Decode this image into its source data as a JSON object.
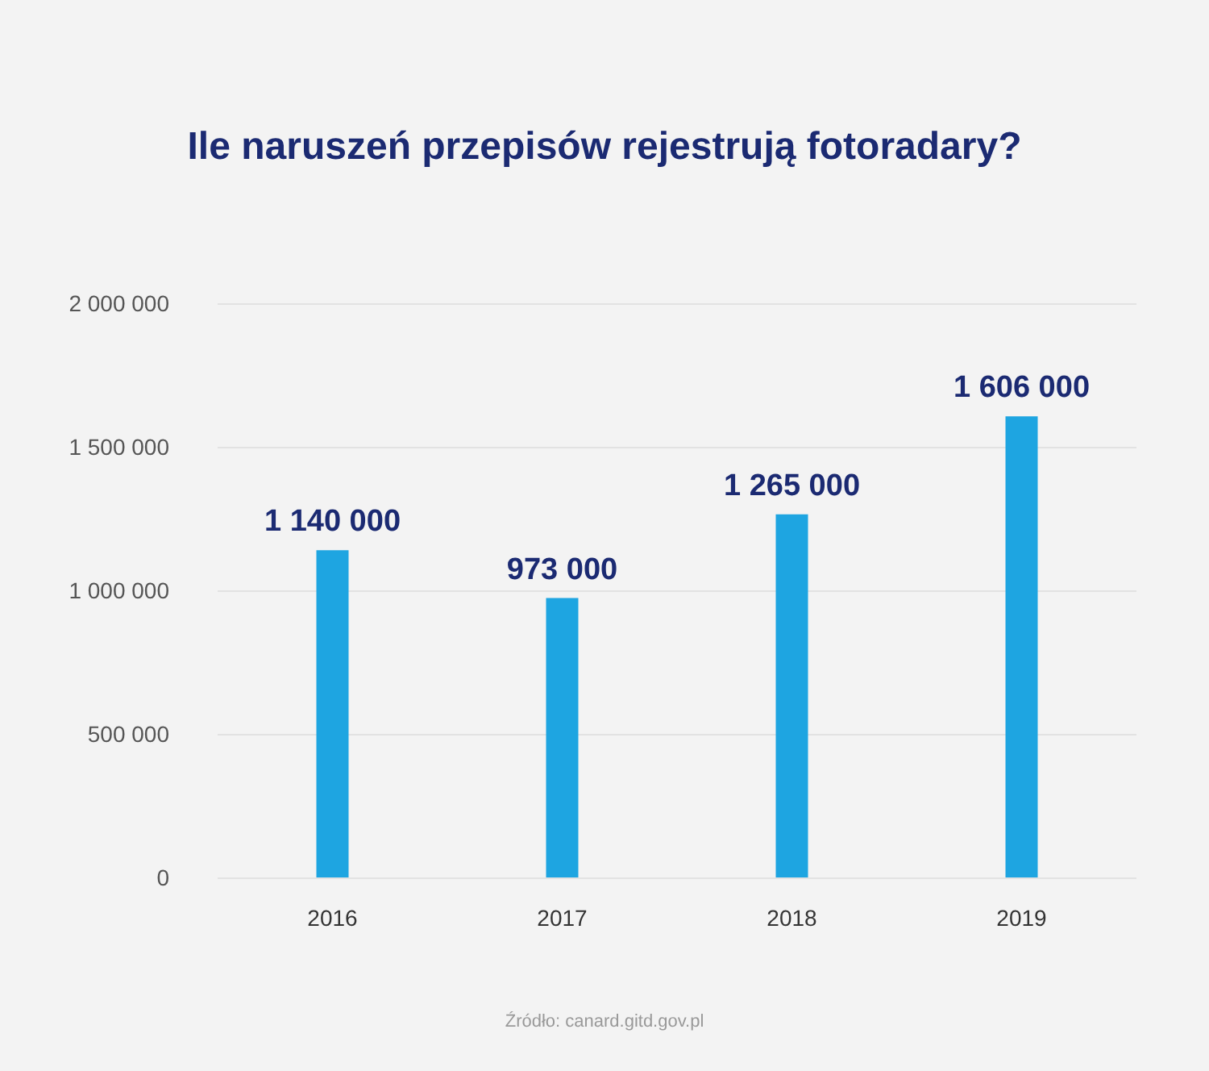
{
  "chart_data": {
    "type": "bar",
    "title": "Ile naruszeń przepisów rejestrują fotoradary?",
    "categories": [
      "2016",
      "2017",
      "2018",
      "2019"
    ],
    "values": [
      1140000,
      973000,
      1265000,
      1606000
    ],
    "value_labels": [
      "1 140 000",
      "973 000",
      "1 265 000",
      "1 606 000"
    ],
    "color": "#1ea5e1",
    "ylim": [
      0,
      2000000
    ],
    "yticks": [
      {
        "value": 0,
        "label": "0"
      },
      {
        "value": 500000,
        "label": "500 000"
      },
      {
        "value": 1000000,
        "label": "1 000 000"
      },
      {
        "value": 1500000,
        "label": "1 500 000"
      },
      {
        "value": 2000000,
        "label": "2 000 000"
      }
    ],
    "grid": "y",
    "annotations": [
      "Źródło: canard.gitd.gov.pl"
    ]
  }
}
